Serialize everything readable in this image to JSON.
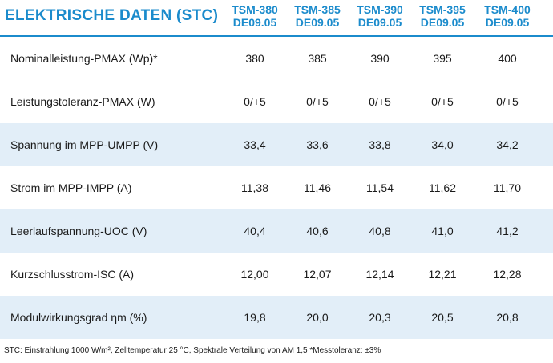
{
  "title": "ELEKTRISCHE DATEN (STC)",
  "models": [
    {
      "line1": "TSM-380",
      "line2": "DE09.05"
    },
    {
      "line1": "TSM-385",
      "line2": "DE09.05"
    },
    {
      "line1": "TSM-390",
      "line2": "DE09.05"
    },
    {
      "line1": "TSM-395",
      "line2": "DE09.05"
    },
    {
      "line1": "TSM-400",
      "line2": "DE09.05"
    }
  ],
  "rows": [
    {
      "label": "Nominalleistung-PMAX (Wp)*",
      "values": [
        "380",
        "385",
        "390",
        "395",
        "400"
      ]
    },
    {
      "label": "Leistungstoleranz-PMAX (W)",
      "values": [
        "0/+5",
        "0/+5",
        "0/+5",
        "0/+5",
        "0/+5"
      ]
    },
    {
      "label": "Spannung im MPP-UMPP (V)",
      "values": [
        "33,4",
        "33,6",
        "33,8",
        "34,0",
        "34,2"
      ]
    },
    {
      "label": "Strom im MPP-IMPP (A)",
      "values": [
        "11,38",
        "11,46",
        "11,54",
        "11,62",
        "11,70"
      ]
    },
    {
      "label": "Leerlaufspannung-UOC (V)",
      "values": [
        "40,4",
        "40,6",
        "40,8",
        "41,0",
        "41,2"
      ]
    },
    {
      "label": "Kurzschlusstrom-ISC (A)",
      "values": [
        "12,00",
        "12,07",
        "12,14",
        "12,21",
        "12,28"
      ]
    },
    {
      "label": "Modulwirkungsgrad ηm (%)",
      "values": [
        "19,8",
        "20,0",
        "20,3",
        "20,5",
        "20,8"
      ]
    }
  ],
  "footnote": "STC: Einstrahlung 1000 W/m², Zelltemperatur 25 °C, Spektrale Verteilung von AM 1,5   *Messtoleranz: ±3%",
  "colors": {
    "accent": "#1b8bcc",
    "row_shade": "#e2eef8"
  }
}
